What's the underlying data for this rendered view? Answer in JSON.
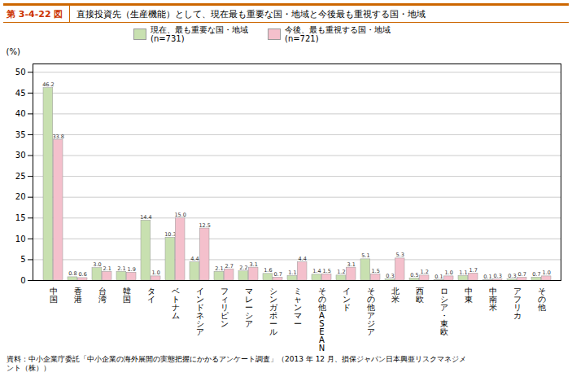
{
  "chart_data": {
    "type": "bar",
    "title": "直接投資先（生産機能）として、現在最も重要な国・地域と今後最も重視する国・地域",
    "fig_label": "第 3-4-22 図",
    "source": [
      "資料：中小企業庁委託「中小企業の海外展開の実態把握にかかるアンケート調査」（2013 年 12 月、損保ジャパン日本興亜リスクマネジメ",
      "ント（株））"
    ],
    "ylabel": "(%)",
    "categories": [
      "中\n国",
      "香\n港",
      "台\n湾",
      "韓\n国",
      "タ\nイ",
      "ベ\nト\nナ\nム",
      "イ\nン\nド\nネ\nシ\nア",
      "フ\nィ\nリ\nピ\nン",
      "マ\nレ\nー\nシ\nア",
      "シ\nン\nガ\nポ\nー\nル",
      "ミ\nャ\nン\nマ\nー",
      "そ\nの\n他\nA\nS\nE\nA\nN",
      "イ\nン\nド",
      "そ\nの\n他\nア\nジ\nア",
      "北\n米",
      "西\n欧",
      "ロ\nシ\nア\n・\n東\n欧",
      "中\n東",
      "中\n南\n米",
      "ア\nフ\nリ\nカ",
      "そ\nの\n他"
    ],
    "series": [
      {
        "name": "現在、最も重要な国・地域\n(n=731)",
        "color": "#c8e0b0",
        "values": [
          46.2,
          0.8,
          3.0,
          2.1,
          14.4,
          10.3,
          4.4,
          2.1,
          2.2,
          1.6,
          1.1,
          1.4,
          1.2,
          5.1,
          0.3,
          0.5,
          0.1,
          1.1,
          0.1,
          0.3,
          0.7
        ],
        "value_labels": [
          "46.2",
          "0.8",
          "3.0",
          "2.1",
          "14.4",
          "10.3",
          "4.4",
          "2.1",
          "2.2",
          "1.6",
          "1.1",
          "1.4",
          "1.2",
          "5.1",
          "0.3",
          "0.5",
          "0.1",
          "1.1",
          "0.1",
          "0.3",
          "0.7"
        ]
      },
      {
        "name": "今後、最も重視する国・地域\n(n=721)",
        "color": "#f4c0cc",
        "values": [
          33.8,
          0.6,
          2.1,
          1.9,
          1.0,
          15.0,
          12.5,
          2.7,
          3.1,
          0.7,
          4.4,
          1.5,
          3.1,
          1.5,
          5.3,
          1.2,
          1.0,
          1.7,
          0.3,
          0.7,
          1.0
        ],
        "value_labels": [
          "33.8",
          "0.6",
          "2.1",
          "1.9",
          "1.0",
          "15.0",
          "12.5",
          "2.7",
          "3.1",
          "0.7",
          "4.4",
          "1.5",
          "3.1",
          "1.5",
          "5.3",
          "1.2",
          "1.0",
          "1.7",
          "0.3",
          "0.7",
          "1.0"
        ]
      }
    ],
    "ylim": [
      0,
      52
    ],
    "yticks": [
      0,
      5,
      10,
      15,
      20,
      25,
      30,
      35,
      40,
      45,
      50
    ],
    "grid": true,
    "legend": "top",
    "data_labels": true
  }
}
